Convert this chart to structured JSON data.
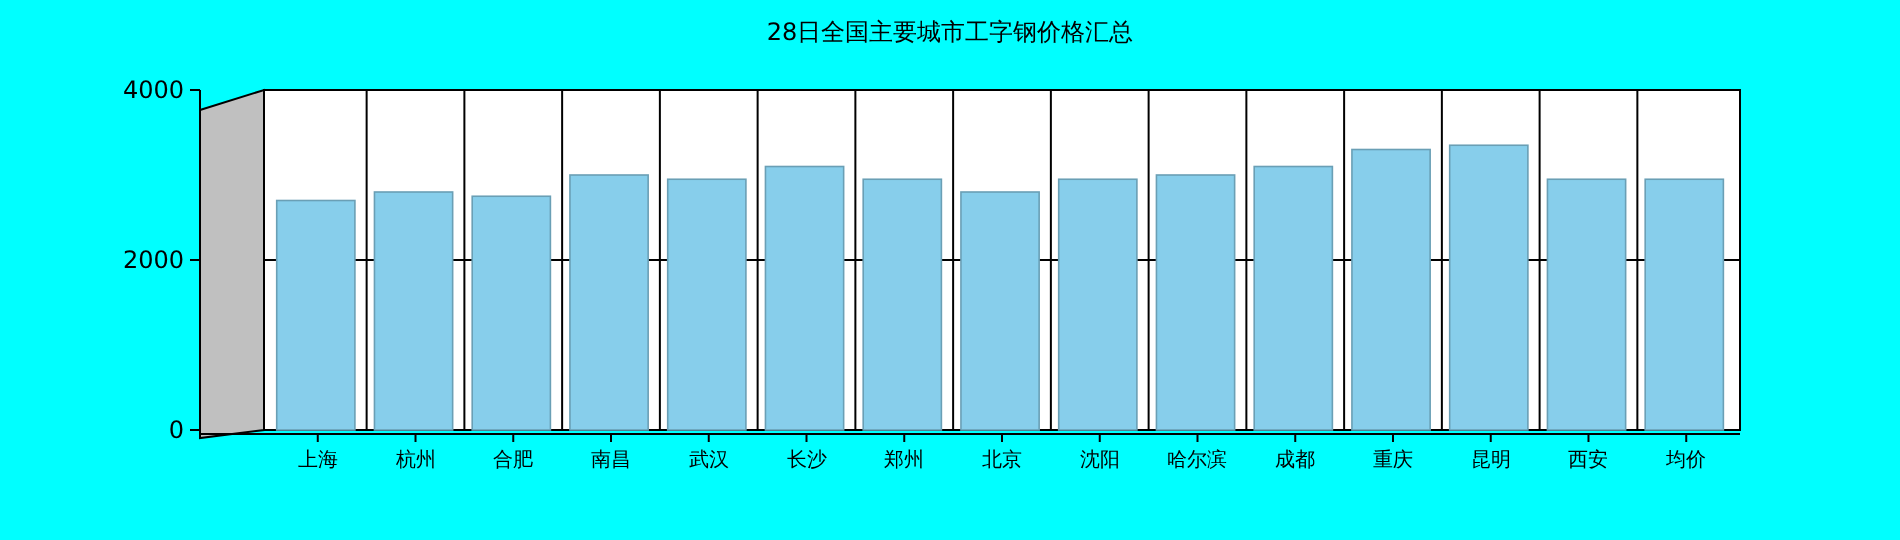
{
  "chart_data": {
    "type": "bar",
    "title": "28日全国主要城市工字钢价格汇总",
    "categories": [
      "上海",
      "杭州",
      "合肥",
      "南昌",
      "武汉",
      "长沙",
      "郑州",
      "北京",
      "沈阳",
      "哈尔滨",
      "成都",
      "重庆",
      "昆明",
      "西安",
      "均价"
    ],
    "values": [
      2700,
      2800,
      2750,
      3000,
      2950,
      3100,
      2950,
      2800,
      2950,
      3000,
      3100,
      3300,
      3350,
      2950,
      2950
    ],
    "color": "#87ceeb",
    "ylim": [
      0,
      4000
    ],
    "yticks": [
      0,
      2000,
      4000
    ],
    "grid": true
  }
}
